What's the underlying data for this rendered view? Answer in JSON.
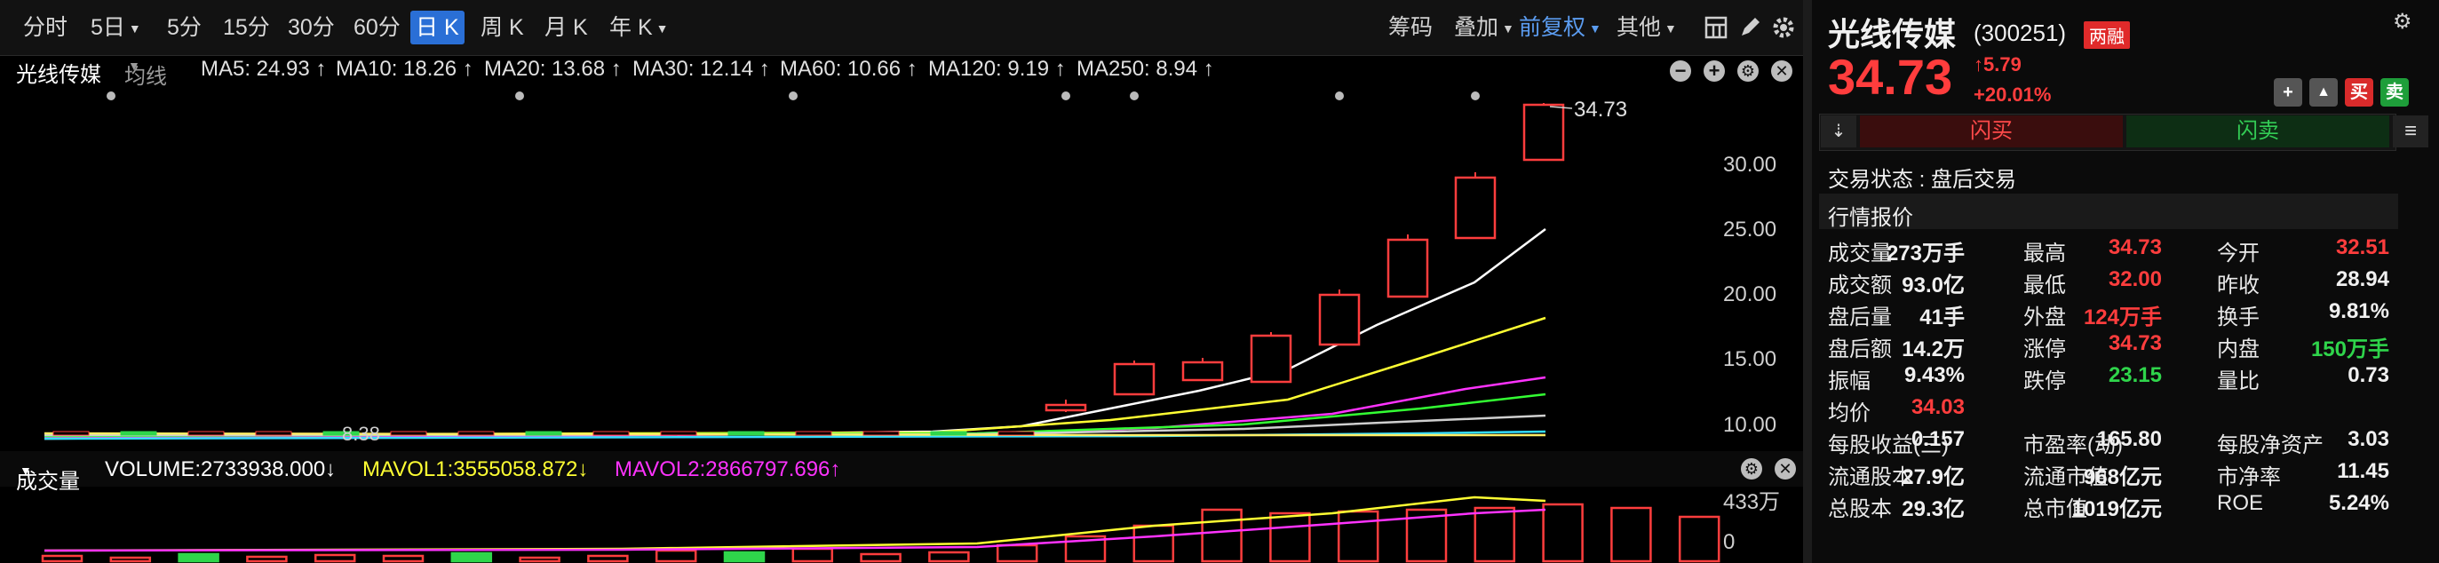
{
  "toolbar": {
    "periods": [
      "分时",
      "5日",
      "5分",
      "15分",
      "30分",
      "60分",
      "日 K",
      "周 K",
      "月 K",
      "年 K"
    ],
    "active_period": "日 K",
    "right_items": [
      "筹码",
      "叠加",
      "前复权",
      "其他"
    ],
    "icons": [
      "layout-icon",
      "draw-icon",
      "settings-icon"
    ]
  },
  "ma_bar": {
    "stock_name": "光线传媒",
    "mode": "均线",
    "items": [
      {
        "label": "MA5: 24.93 ↑",
        "color": "#ffffff"
      },
      {
        "label": "MA10: 18.26 ↑",
        "color": "#ffff33"
      },
      {
        "label": "MA20: 13.68 ↑",
        "color": "#ff33ff"
      },
      {
        "label": "MA30: 12.14 ↑",
        "color": "#33ff33"
      },
      {
        "label": "MA60: 10.66 ↑",
        "color": "#d0d0d0"
      },
      {
        "label": "MA120: 9.19 ↑",
        "color": "#33ddff"
      },
      {
        "label": "MA250: 8.94 ↑",
        "color": "#ffee66"
      }
    ]
  },
  "chart": {
    "price_ticks": [
      "30.00",
      "25.00",
      "20.00",
      "15.00",
      "10.00"
    ],
    "high_marker": "34.73",
    "low_marker": "8.38",
    "vol_ticks": [
      "433万",
      "0"
    ]
  },
  "volume_bar": {
    "label": "成交量",
    "volume": "VOLUME:2733938.000↓",
    "mavol1": "MAVOL1:3555058.872↓",
    "mavol2": "MAVOL2:2866797.696↑"
  },
  "quote": {
    "name": "光线传媒",
    "code": "(300251)",
    "badge": "两融",
    "price": "34.73",
    "change": "5.79",
    "change_pct": "+20.01%",
    "actions": [
      "+",
      "🔔",
      "买",
      "卖"
    ],
    "flash_buy": "闪买",
    "flash_sell": "闪卖",
    "trade_status": "交易状态 : 盘后交易",
    "section_title": "行情报价",
    "rows": [
      [
        {
          "l": "成交量",
          "v": "273万手",
          "c": "white"
        },
        {
          "l": "最高",
          "v": "34.73",
          "c": "red"
        },
        {
          "l": "今开",
          "v": "32.51",
          "c": "red"
        }
      ],
      [
        {
          "l": "成交额",
          "v": "93.0亿",
          "c": "white"
        },
        {
          "l": "最低",
          "v": "32.00",
          "c": "red"
        },
        {
          "l": "昨收",
          "v": "28.94",
          "c": "white"
        }
      ],
      [
        {
          "l": "盘后量",
          "v": "41手",
          "c": "white"
        },
        {
          "l": "外盘",
          "v": "124万手",
          "c": "red"
        },
        {
          "l": "换手",
          "v": "9.81%",
          "c": "white"
        }
      ],
      [
        {
          "l": "盘后额",
          "v": "14.2万",
          "c": "white"
        },
        {
          "l": "涨停",
          "v": "34.73",
          "c": "red"
        },
        {
          "l": "内盘",
          "v": "150万手",
          "c": "green"
        }
      ],
      [
        {
          "l": "振幅",
          "v": "9.43%",
          "c": "white"
        },
        {
          "l": "跌停",
          "v": "23.15",
          "c": "green"
        },
        {
          "l": "量比",
          "v": "0.73",
          "c": "white"
        }
      ],
      [
        {
          "l": "均价",
          "v": "34.03",
          "c": "red"
        },
        {
          "l": "",
          "v": "",
          "c": "white"
        },
        {
          "l": "",
          "v": "",
          "c": "white"
        }
      ],
      [
        {
          "l": "每股收益(三)",
          "v": "0.157",
          "c": "white"
        },
        {
          "l": "市盈率(动)",
          "v": "165.80",
          "c": "white"
        },
        {
          "l": "每股净资产",
          "v": "3.03",
          "c": "white"
        }
      ],
      [
        {
          "l": "流通股本",
          "v": "27.9亿",
          "c": "white"
        },
        {
          "l": "流通市值",
          "v": "968亿元",
          "c": "white"
        },
        {
          "l": "市净率",
          "v": "11.45",
          "c": "white"
        }
      ],
      [
        {
          "l": "总股本",
          "v": "29.3亿",
          "c": "white"
        },
        {
          "l": "总市值",
          "v": "1019亿元",
          "c": "white"
        },
        {
          "l": "ROE",
          "v": "5.24%",
          "c": "white"
        }
      ]
    ]
  },
  "colors": {
    "up": "#ff3d3d",
    "down": "#2fd54b",
    "accent": "#2a6fd6",
    "background": "#000000"
  }
}
